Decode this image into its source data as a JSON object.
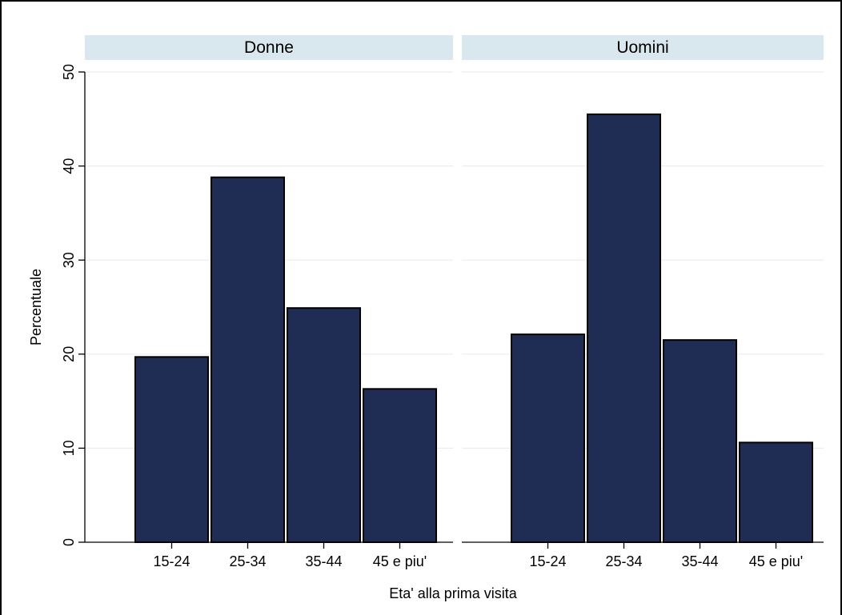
{
  "chart_data": {
    "type": "bar",
    "ylabel": "Percentuale",
    "xlabel": "Eta' alla prima visita",
    "ylim": [
      0,
      50
    ],
    "yticks": [
      "0",
      "10",
      "20",
      "30",
      "40",
      "50"
    ],
    "grid": true,
    "categories": [
      "15-24",
      "25-34",
      "35-44",
      "45 e piu'"
    ],
    "bar_color": "#1f2d55",
    "panel_header_color": "#d9e8ee",
    "panels": [
      {
        "title": "Donne",
        "values": [
          19.7,
          38.8,
          24.9,
          16.3
        ]
      },
      {
        "title": "Uomini",
        "values": [
          22.1,
          45.5,
          21.5,
          10.6
        ]
      }
    ]
  }
}
